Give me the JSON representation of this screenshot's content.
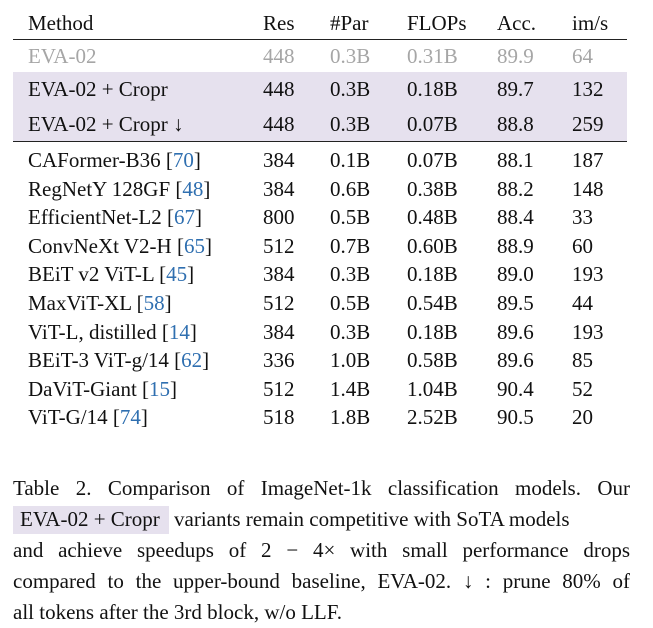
{
  "table": {
    "headers": [
      "Method",
      "Res",
      "#Par",
      "FLOPs",
      "Acc.",
      "im/s"
    ],
    "baseline_row": {
      "method": "EVA-02",
      "res": "448",
      "par": "0.3B",
      "flops": "0.31B",
      "acc": "89.9",
      "ims": "64"
    },
    "cropr_rows": [
      {
        "method": "EVA-02 + Cropr",
        "res": "448",
        "par": "0.3B",
        "flops": "0.18B",
        "acc": "89.7",
        "ims": "132"
      },
      {
        "method": "EVA-02 + Cropr ↓",
        "res": "448",
        "par": "0.3B",
        "flops": "0.07B",
        "acc": "88.8",
        "ims": "259"
      }
    ],
    "other_rows": [
      {
        "method": "CAFormer-B36",
        "ref": "70",
        "res": "384",
        "par": "0.1B",
        "flops": "0.07B",
        "acc": "88.1",
        "ims": "187"
      },
      {
        "method": "RegNetY 128GF",
        "ref": "48",
        "res": "384",
        "par": "0.6B",
        "flops": "0.38B",
        "acc": "88.2",
        "ims": "148"
      },
      {
        "method": "EfficientNet-L2",
        "ref": "67",
        "res": "800",
        "par": "0.5B",
        "flops": "0.48B",
        "acc": "88.4",
        "ims": "33"
      },
      {
        "method": "ConvNeXt V2-H",
        "ref": "65",
        "res": "512",
        "par": "0.7B",
        "flops": "0.60B",
        "acc": "88.9",
        "ims": "60"
      },
      {
        "method": "BEiT v2 ViT-L",
        "ref": "45",
        "res": "384",
        "par": "0.3B",
        "flops": "0.18B",
        "acc": "89.0",
        "ims": "193"
      },
      {
        "method": "MaxViT-XL",
        "ref": "58",
        "res": "512",
        "par": "0.5B",
        "flops": "0.54B",
        "acc": "89.5",
        "ims": "44"
      },
      {
        "method": "ViT-L, distilled",
        "ref": "14",
        "res": "384",
        "par": "0.3B",
        "flops": "0.18B",
        "acc": "89.6",
        "ims": "193"
      },
      {
        "method": "BEiT-3 ViT-g/14",
        "ref": "62",
        "res": "336",
        "par": "1.0B",
        "flops": "0.58B",
        "acc": "89.6",
        "ims": "85"
      },
      {
        "method": "DaViT-Giant",
        "ref": "15",
        "res": "512",
        "par": "1.4B",
        "flops": "1.04B",
        "acc": "90.4",
        "ims": "52"
      },
      {
        "method": "ViT-G/14",
        "ref": "74",
        "res": "518",
        "par": "1.8B",
        "flops": "2.52B",
        "acc": "90.5",
        "ims": "20"
      }
    ]
  },
  "caption": {
    "line1": "Table 2.  Comparison of ImageNet-1k classification models.  Our",
    "highlight": "EVA-02 + Cropr",
    "line2_rest": " variants remain competitive with SoTA models",
    "line3": "and achieve speedups of 2 − 4× with small performance drops",
    "line4": "compared to the upper-bound baseline, EVA-02. ↓ : prune 80% of",
    "line5": "all tokens after the 3rd block, w/o LLF."
  },
  "colors": {
    "highlight_bg": "#e6e1ee",
    "baseline_text": "#a6a6a6",
    "citation_link": "#2f6fb0"
  }
}
